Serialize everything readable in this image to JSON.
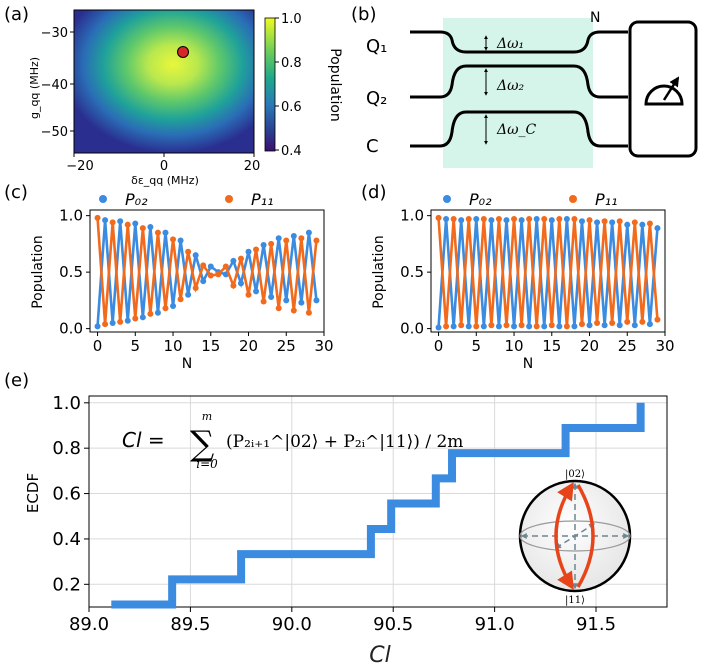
{
  "panels": {
    "a": {
      "label": "(a)",
      "ylabel": "g_qq (MHz)",
      "xlabel": "δε_qq (MHz)",
      "colorbar_label": "Population",
      "colorbar_ticks": [
        "1.0",
        "0.8",
        "0.6",
        "0.4"
      ],
      "x_ticks": [
        "−20",
        "0",
        "20"
      ],
      "y_ticks": [
        "−30",
        "−40",
        "−50"
      ],
      "marker_color": "#d62728"
    },
    "b": {
      "label": "(b)",
      "q1": "Q₁",
      "q2": "Q₂",
      "c": "C",
      "n": "N",
      "dw1": "Δω₁",
      "dw2": "Δω₂",
      "dwc": "Δω_C",
      "highlight_color": "#d5f5ea"
    },
    "c": {
      "label": "(c)",
      "legend_p02": "P₀₂",
      "legend_p11": "P₁₁",
      "ylabel": "Population",
      "xlabel": "N"
    },
    "d": {
      "label": "(d)",
      "legend_p02": "P₀₂",
      "legend_p11": "P₁₁",
      "ylabel": "Population",
      "xlabel": "N"
    },
    "e": {
      "label": "(e)",
      "ylabel": "ECDF",
      "xlabel": "Cl",
      "formula_lhs": "Cl =",
      "formula_sum_top": "m",
      "formula_sum_bottom": "i=0",
      "formula_body": "(P₂ᵢ₊₁^|02⟩ + P₂ᵢ^|11⟩) / 2m",
      "bloch_top": "|02⟩",
      "bloch_bottom": "|11⟩"
    }
  },
  "colors": {
    "blue": "#3b8be0",
    "orange": "#f26b1d",
    "grid": "#d9d9d9"
  },
  "chart_data": [
    {
      "id": "c",
      "type": "line",
      "title": "",
      "xlabel": "N",
      "ylabel": "Population",
      "xlim": [
        -1,
        30
      ],
      "ylim": [
        -0.03,
        1.05
      ],
      "x_ticks": [
        0,
        5,
        10,
        15,
        20,
        25,
        30
      ],
      "y_ticks": [
        0.0,
        0.5,
        1.0
      ],
      "x": [
        0,
        1,
        2,
        3,
        4,
        5,
        6,
        7,
        8,
        9,
        10,
        11,
        12,
        13,
        14,
        15,
        16,
        17,
        18,
        19,
        20,
        21,
        22,
        23,
        24,
        25,
        26,
        27,
        28,
        29
      ],
      "series": [
        {
          "name": "P02",
          "values": [
            0.02,
            0.96,
            0.05,
            0.95,
            0.07,
            0.93,
            0.1,
            0.9,
            0.14,
            0.85,
            0.2,
            0.78,
            0.3,
            0.65,
            0.42,
            0.55,
            0.5,
            0.48,
            0.6,
            0.4,
            0.68,
            0.33,
            0.74,
            0.28,
            0.8,
            0.25,
            0.82,
            0.23,
            0.85,
            0.25
          ]
        },
        {
          "name": "P11",
          "values": [
            0.98,
            0.04,
            0.94,
            0.06,
            0.92,
            0.09,
            0.89,
            0.13,
            0.85,
            0.18,
            0.79,
            0.26,
            0.68,
            0.36,
            0.56,
            0.47,
            0.48,
            0.55,
            0.38,
            0.62,
            0.3,
            0.7,
            0.24,
            0.75,
            0.18,
            0.78,
            0.16,
            0.8,
            0.14,
            0.78
          ]
        }
      ]
    },
    {
      "id": "d",
      "type": "line",
      "title": "",
      "xlabel": "N",
      "ylabel": "Population",
      "xlim": [
        -1,
        30
      ],
      "ylim": [
        -0.03,
        1.05
      ],
      "x_ticks": [
        0,
        5,
        10,
        15,
        20,
        25,
        30
      ],
      "y_ticks": [
        0.0,
        0.5,
        1.0
      ],
      "x": [
        0,
        1,
        2,
        3,
        4,
        5,
        6,
        7,
        8,
        9,
        10,
        11,
        12,
        13,
        14,
        15,
        16,
        17,
        18,
        19,
        20,
        21,
        22,
        23,
        24,
        25,
        26,
        27,
        28,
        29
      ],
      "series": [
        {
          "name": "P02",
          "values": [
            0.01,
            0.97,
            0.02,
            0.96,
            0.02,
            0.97,
            0.02,
            0.96,
            0.02,
            0.96,
            0.02,
            0.96,
            0.02,
            0.97,
            0.02,
            0.96,
            0.02,
            0.97,
            0.02,
            0.95,
            0.03,
            0.94,
            0.03,
            0.94,
            0.03,
            0.92,
            0.03,
            0.92,
            0.04,
            0.89
          ]
        },
        {
          "name": "P11",
          "values": [
            0.98,
            0.02,
            0.97,
            0.03,
            0.97,
            0.02,
            0.97,
            0.03,
            0.97,
            0.03,
            0.97,
            0.03,
            0.97,
            0.02,
            0.97,
            0.03,
            0.97,
            0.02,
            0.97,
            0.04,
            0.96,
            0.05,
            0.95,
            0.05,
            0.95,
            0.06,
            0.94,
            0.06,
            0.93,
            0.08
          ]
        }
      ]
    },
    {
      "id": "e",
      "type": "line",
      "title": "",
      "xlabel": "Cl",
      "ylabel": "ECDF",
      "xlim": [
        89.0,
        91.85
      ],
      "ylim": [
        0.1,
        1.03
      ],
      "x_ticks": [
        89.0,
        89.5,
        90.0,
        90.5,
        91.0,
        91.5
      ],
      "y_ticks": [
        0.2,
        0.4,
        0.6,
        0.8,
        1.0
      ],
      "grid": true,
      "series": [
        {
          "name": "ECDF",
          "x": [
            89.11,
            89.41,
            89.75,
            90.39,
            90.49,
            90.71,
            90.79,
            91.35,
            91.72
          ],
          "values": [
            0.111,
            0.222,
            0.333,
            0.444,
            0.556,
            0.667,
            0.778,
            0.889,
            1.0
          ]
        }
      ]
    }
  ]
}
